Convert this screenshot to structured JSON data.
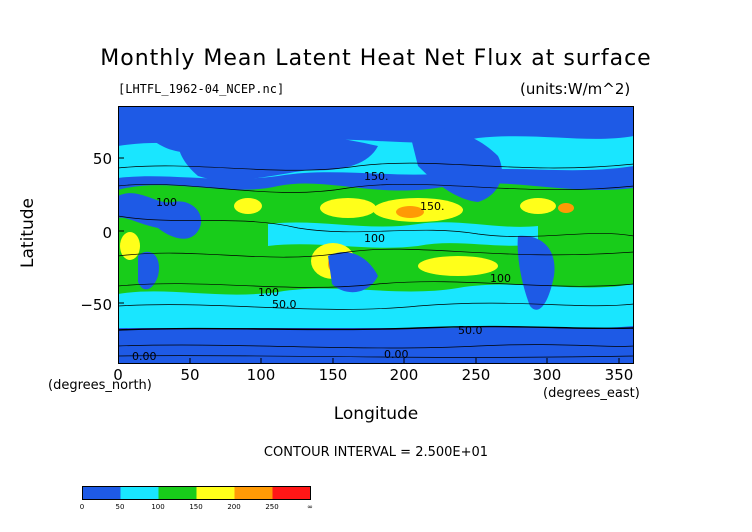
{
  "title": "Monthly Mean Latent Heat Net Flux at surface",
  "filename": "[LHTFL_1962-04_NCEP.nc]",
  "units": "(units:W/m^2)",
  "axes": {
    "ylabel": "Latitude",
    "xlabel": "Longitude",
    "y_unit": "(degrees_north)",
    "x_unit": "(degrees_east)",
    "yticks": [
      "50",
      "0",
      "−50"
    ],
    "xticks": [
      "0",
      "50",
      "100",
      "150",
      "200",
      "250",
      "300",
      "350"
    ]
  },
  "contour_interval": "CONTOUR INTERVAL = 2.500E+01",
  "contour_labels": [
    "100",
    "150.",
    "100",
    "100",
    "50.0",
    "50.0",
    "0.00",
    "0.00",
    "150.",
    "100"
  ],
  "colorbar": {
    "labels": [
      "0",
      "50",
      "100",
      "150",
      "200",
      "250",
      "∞"
    ],
    "colors": [
      "#1e5ae6",
      "#19e6ff",
      "#18cc1a",
      "#ffff1a",
      "#ff9a05",
      "#ff1616"
    ]
  },
  "chart_data": {
    "type": "heatmap",
    "title": "Monthly Mean Latent Heat Net Flux at surface",
    "xlabel": "Longitude",
    "ylabel": "Latitude",
    "xlim": [
      0,
      360
    ],
    "ylim": [
      -90,
      90
    ],
    "levels": [
      0,
      25,
      50,
      75,
      100,
      125,
      150,
      175,
      200,
      225,
      250,
      275
    ],
    "zones": [
      {
        "lat_range": [
          70,
          90
        ],
        "value": 10
      },
      {
        "lat_range": [
          40,
          70
        ],
        "value": 40
      },
      {
        "lat_range": [
          10,
          40
        ],
        "value": 110
      },
      {
        "lat_range": [
          -10,
          10
        ],
        "value": 90
      },
      {
        "lat_range": [
          -40,
          -10
        ],
        "value": 120
      },
      {
        "lat_range": [
          -60,
          -40
        ],
        "value": 60
      },
      {
        "lat_range": [
          -90,
          -60
        ],
        "value": 5
      }
    ]
  }
}
